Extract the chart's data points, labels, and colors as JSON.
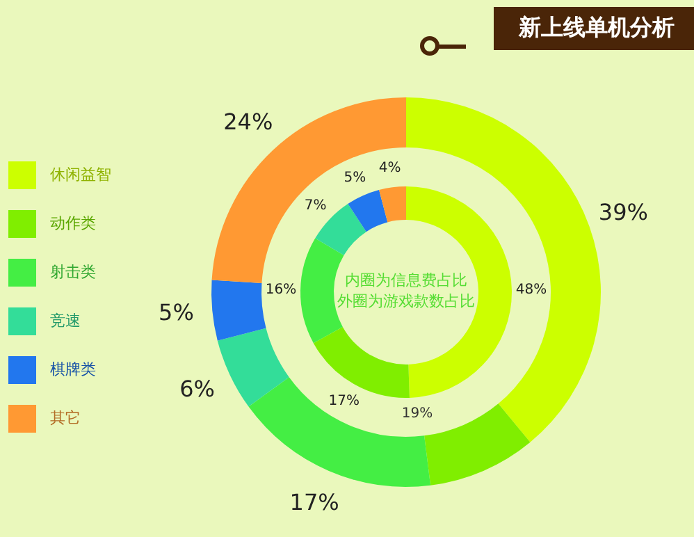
{
  "chart_data": {
    "type": "donut",
    "title": "新上线单机分析",
    "categories": [
      "休闲益智",
      "动作类",
      "射击类",
      "竞速",
      "棋牌类",
      "其它"
    ],
    "colors": [
      "#ccff00",
      "#80ee00",
      "#44ee44",
      "#33dd99",
      "#2277ee",
      "#ff9933"
    ],
    "series": [
      {
        "values": [
          39,
          9,
          17,
          6,
          5,
          24
        ],
        "value_labels": [
          "39%",
          null,
          "17%",
          "6%",
          "5%",
          "24%"
        ]
      },
      {
        "values": [
          48,
          17,
          16,
          7,
          5,
          4
        ],
        "value_labels": [
          "48%",
          "17%",
          "16%",
          "7%",
          "5%",
          "4%"
        ]
      }
    ],
    "legend": "left",
    "annotations": [
      "内圈为信息费占比",
      "外圈为游戏款数占比",
      "19%"
    ]
  }
}
